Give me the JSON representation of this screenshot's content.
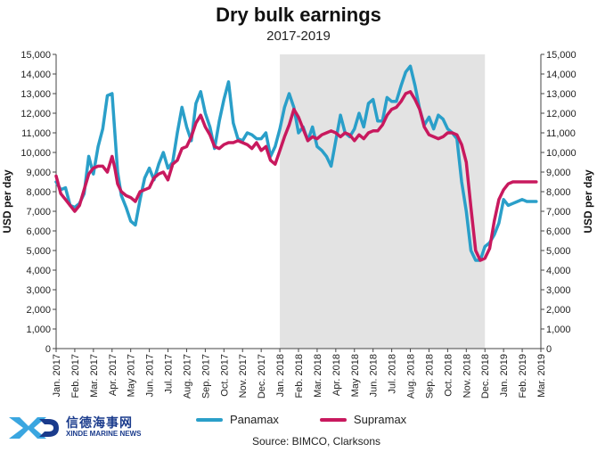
{
  "title": "Dry bulk earnings",
  "subtitle": "2017-2019",
  "source": "Source: BIMCO, Clarksons",
  "logo": {
    "name_cn": "信德海事网",
    "name_en": "XINDE MARINE NEWS"
  },
  "colors": {
    "panamax": "#2a9fc9",
    "supramax": "#c8195e",
    "shade": "#e3e3e3",
    "logo": "#1a3b8c"
  },
  "chart_data": {
    "type": "line",
    "title": "Dry bulk earnings",
    "subtitle": "2017-2019",
    "ylabel_left": "USD per day",
    "ylabel_right": "USD per day",
    "ylim": [
      0,
      15000
    ],
    "y_ticks": [
      "0",
      "1,000",
      "2,000",
      "3,000",
      "4,000",
      "5,000",
      "6,000",
      "7,000",
      "8,000",
      "9,000",
      "10,000",
      "11,000",
      "12,000",
      "13,000",
      "14,000",
      "15,000"
    ],
    "y_tick_values": [
      0,
      1000,
      2000,
      3000,
      4000,
      5000,
      6000,
      7000,
      8000,
      9000,
      10000,
      11000,
      12000,
      13000,
      14000,
      15000
    ],
    "x_labels": [
      "Jan. 2017",
      "Feb. 2017",
      "Mar. 2017",
      "Apr. 2017",
      "May 2017",
      "Jun. 2017",
      "Jul. 2017",
      "Aug. 2017",
      "Sep. 2017",
      "Oct. 2017",
      "Nov. 2017",
      "Dec. 2017",
      "Jan. 2018",
      "Feb. 2018",
      "Mar. 2018",
      "Apr. 2018",
      "May 2018",
      "Jun. 2018",
      "Jul. 2018",
      "Aug. 2018",
      "Sep. 2018",
      "Oct. 2018",
      "Nov. 2018",
      "Dec. 2018",
      "Jan. 2019",
      "Feb. 2019",
      "Mar. 2019"
    ],
    "shaded_range": [
      "Jan. 2018",
      "Dec. 2018"
    ],
    "grid": false,
    "legend_position": "bottom",
    "x_month_index": [
      0,
      0.25,
      0.5,
      0.75,
      1,
      1.25,
      1.5,
      1.75,
      2,
      2.25,
      2.5,
      2.75,
      3,
      3.15,
      3.3,
      3.5,
      3.75,
      4,
      4.25,
      4.5,
      4.75,
      5,
      5.25,
      5.5,
      5.75,
      6,
      6.25,
      6.5,
      6.75,
      7,
      7.25,
      7.5,
      7.75,
      8,
      8.25,
      8.5,
      8.75,
      9,
      9.25,
      9.5,
      9.75,
      10,
      10.25,
      10.5,
      10.75,
      11,
      11.25,
      11.5,
      11.75,
      12,
      12.25,
      12.5,
      12.75,
      13,
      13.25,
      13.5,
      13.75,
      14,
      14.25,
      14.5,
      14.75,
      15,
      15.25,
      15.5,
      15.75,
      16,
      16.25,
      16.5,
      16.75,
      17,
      17.25,
      17.5,
      17.75,
      18,
      18.25,
      18.5,
      18.75,
      19,
      19.25,
      19.5,
      19.75,
      20,
      20.25,
      20.5,
      20.75,
      21,
      21.25,
      21.5,
      21.75,
      22,
      22.25,
      22.5,
      22.75,
      23,
      23.25,
      23.5,
      23.75,
      24,
      24.25,
      24.5,
      24.75,
      25,
      25.25,
      25.5,
      25.75,
      26
    ],
    "series": [
      {
        "name": "Panamax",
        "values": [
          8500,
          8100,
          8200,
          7300,
          7200,
          7400,
          7900,
          9800,
          8900,
          10300,
          11200,
          12900,
          13000,
          11000,
          9000,
          7800,
          7200,
          6500,
          6300,
          7600,
          8700,
          9200,
          8600,
          9400,
          10000,
          9200,
          9500,
          11000,
          12300,
          11300,
          10600,
          12500,
          13100,
          12000,
          11300,
          10200,
          11600,
          12700,
          13600,
          11500,
          10700,
          10600,
          11000,
          10900,
          10700,
          10700,
          11000,
          9800,
          10300,
          11200,
          12300,
          13000,
          12300,
          11000,
          11300,
          10600,
          11300,
          10300,
          10100,
          9800,
          9300,
          10600,
          11900,
          11000,
          10800,
          11200,
          12000,
          11300,
          12500,
          12700,
          11600,
          11600,
          12800,
          12600,
          12600,
          13400,
          14100,
          14400,
          13400,
          12200,
          11400,
          11800,
          11200,
          11900,
          11700,
          11200,
          11000,
          10700,
          8500,
          7000,
          5000,
          4500,
          4500,
          5200,
          5400,
          5800,
          6400,
          7600,
          7300,
          7400,
          7500,
          7600,
          7500,
          7500,
          7500
        ],
        "legend_label": "Panamax"
      },
      {
        "name": "Supramax",
        "values": [
          8800,
          7900,
          7600,
          7300,
          7000,
          7300,
          8100,
          8900,
          9200,
          9300,
          9300,
          9000,
          9800,
          9200,
          8400,
          8000,
          7800,
          7700,
          7500,
          8000,
          8100,
          8200,
          8700,
          8900,
          9000,
          8600,
          9400,
          9600,
          10200,
          10300,
          10800,
          11500,
          11900,
          11300,
          10900,
          10300,
          10200,
          10400,
          10500,
          10500,
          10600,
          10500,
          10400,
          10200,
          10500,
          10100,
          10300,
          9600,
          9400,
          10100,
          10800,
          11400,
          12200,
          11800,
          11200,
          10600,
          10800,
          10700,
          10900,
          11000,
          11100,
          11000,
          10800,
          11000,
          10900,
          10600,
          10900,
          10700,
          11000,
          11100,
          11100,
          11400,
          11900,
          12200,
          12300,
          12600,
          13000,
          13100,
          12700,
          12200,
          11300,
          10900,
          10800,
          10700,
          10800,
          11000,
          11000,
          10900,
          10400,
          9500,
          7200,
          5000,
          4500,
          4600,
          5100,
          6500,
          7600,
          8100,
          8400,
          8500,
          8500,
          8500,
          8500,
          8500,
          8500
        ],
        "legend_label": "Supramax"
      }
    ]
  }
}
